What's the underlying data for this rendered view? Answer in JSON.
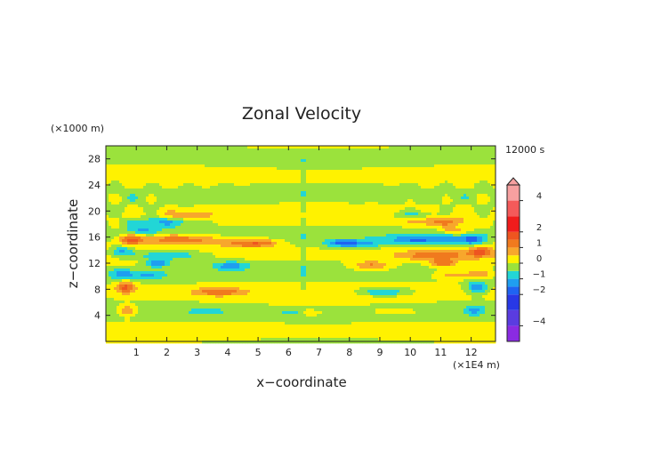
{
  "chart_data": {
    "type": "heatmap",
    "title": "Zonal Velocity",
    "xlabel": "x−coordinate",
    "ylabel": "z−coordinate",
    "x_units": "(×1E4 m)",
    "y_units": "(×1000 m)",
    "time_label": "12000 s",
    "xlim": [
      0,
      12.8
    ],
    "ylim": [
      0,
      30
    ],
    "x_ticks": [
      1,
      2,
      3,
      4,
      5,
      6,
      7,
      8,
      9,
      10,
      11,
      12
    ],
    "y_ticks": [
      4,
      8,
      12,
      16,
      20,
      24,
      28
    ],
    "colorbar": {
      "range": [
        -5,
        5
      ],
      "tick_values": [
        4,
        2,
        1,
        0,
        -1,
        -2,
        -4
      ],
      "tick_labels": [
        "4",
        "2",
        "1",
        "0",
        "−1",
        "−2",
        "−4"
      ],
      "colors": [
        {
          "min": -5.0,
          "max": -4.0,
          "color": "#8a2be2"
        },
        {
          "min": -4.0,
          "max": -3.0,
          "color": "#5a3ce0"
        },
        {
          "min": -3.0,
          "max": -2.0,
          "color": "#2838e6"
        },
        {
          "min": -2.0,
          "max": -1.5,
          "color": "#1f63f2"
        },
        {
          "min": -1.5,
          "max": -1.0,
          "color": "#1f9ef0"
        },
        {
          "min": -1.0,
          "max": -0.5,
          "color": "#22d6d6"
        },
        {
          "min": -0.5,
          "max": 0.0,
          "color": "#9be23c"
        },
        {
          "min": 0.0,
          "max": 0.5,
          "color": "#fff200"
        },
        {
          "min": 0.5,
          "max": 1.0,
          "color": "#f7a72c"
        },
        {
          "min": 1.0,
          "max": 1.5,
          "color": "#f07a1e"
        },
        {
          "min": 1.5,
          "max": 2.0,
          "color": "#ee5520"
        },
        {
          "min": 2.0,
          "max": 3.0,
          "color": "#f01c1c"
        },
        {
          "min": 3.0,
          "max": 4.0,
          "color": "#f45a5a"
        },
        {
          "min": 4.0,
          "max": 5.0,
          "color": "#f7a0a0"
        }
      ]
    },
    "features": [
      {
        "x": 0.65,
        "z": 8.3,
        "sx": 0.32,
        "sz": 0.9,
        "amp": 1.6
      },
      {
        "x": 0.7,
        "z": 4.8,
        "sx": 0.3,
        "sz": 0.8,
        "amp": 1.2
      },
      {
        "x": 0.5,
        "z": 10.3,
        "sx": 0.4,
        "sz": 0.8,
        "amp": -1.0
      },
      {
        "x": 0.5,
        "z": 13.8,
        "sx": 0.4,
        "sz": 0.8,
        "amp": -1.3
      },
      {
        "x": 0.8,
        "z": 15.6,
        "sx": 0.4,
        "sz": 0.8,
        "amp": 1.4
      },
      {
        "x": 1.3,
        "z": 17.0,
        "sx": 0.5,
        "sz": 0.6,
        "amp": -0.9
      },
      {
        "x": 1.8,
        "z": 18.3,
        "sx": 1.0,
        "sz": 0.7,
        "amp": -1.1
      },
      {
        "x": 2.7,
        "z": 19.4,
        "sx": 0.7,
        "sz": 0.6,
        "amp": 0.9
      },
      {
        "x": 2.4,
        "z": 15.6,
        "sx": 1.3,
        "sz": 0.8,
        "amp": 1.5
      },
      {
        "x": 2.0,
        "z": 13.2,
        "sx": 1.2,
        "sz": 0.7,
        "amp": -1.2
      },
      {
        "x": 1.7,
        "z": 12.0,
        "sx": 0.4,
        "sz": 0.6,
        "amp": -1.4
      },
      {
        "x": 1.4,
        "z": 10.2,
        "sx": 0.6,
        "sz": 0.7,
        "amp": -0.9
      },
      {
        "x": 4.1,
        "z": 11.6,
        "sx": 0.6,
        "sz": 0.7,
        "amp": -1.2
      },
      {
        "x": 3.7,
        "z": 7.6,
        "sx": 0.8,
        "sz": 0.6,
        "amp": 1.3
      },
      {
        "x": 4.5,
        "z": 15.0,
        "sx": 0.7,
        "sz": 0.6,
        "amp": 1.2
      },
      {
        "x": 5.2,
        "z": 15.1,
        "sx": 0.5,
        "sz": 0.6,
        "amp": 1.0
      },
      {
        "x": 3.3,
        "z": 4.6,
        "sx": 0.6,
        "sz": 0.4,
        "amp": -0.8
      },
      {
        "x": 6.2,
        "z": 4.4,
        "sx": 0.4,
        "sz": 0.4,
        "amp": -0.8
      },
      {
        "x": 12.2,
        "z": 8.3,
        "sx": 0.32,
        "sz": 0.9,
        "amp": -1.5
      },
      {
        "x": 12.1,
        "z": 4.8,
        "sx": 0.3,
        "sz": 0.8,
        "amp": -1.1
      },
      {
        "x": 12.3,
        "z": 10.3,
        "sx": 0.4,
        "sz": 0.8,
        "amp": 1.0
      },
      {
        "x": 12.3,
        "z": 13.8,
        "sx": 0.4,
        "sz": 0.8,
        "amp": 1.3
      },
      {
        "x": 12.0,
        "z": 15.6,
        "sx": 0.4,
        "sz": 0.8,
        "amp": -1.4
      },
      {
        "x": 11.5,
        "z": 17.0,
        "sx": 0.5,
        "sz": 0.6,
        "amp": 0.9
      },
      {
        "x": 11.0,
        "z": 18.3,
        "sx": 1.0,
        "sz": 0.7,
        "amp": 1.1
      },
      {
        "x": 10.1,
        "z": 19.4,
        "sx": 0.7,
        "sz": 0.6,
        "amp": -0.9
      },
      {
        "x": 10.4,
        "z": 15.6,
        "sx": 1.3,
        "sz": 0.8,
        "amp": -1.5
      },
      {
        "x": 10.8,
        "z": 13.2,
        "sx": 1.2,
        "sz": 0.7,
        "amp": 1.2
      },
      {
        "x": 11.1,
        "z": 12.0,
        "sx": 0.4,
        "sz": 0.6,
        "amp": 1.4
      },
      {
        "x": 11.4,
        "z": 10.2,
        "sx": 0.6,
        "sz": 0.7,
        "amp": 0.9
      },
      {
        "x": 8.7,
        "z": 11.6,
        "sx": 0.6,
        "sz": 0.7,
        "amp": 1.2
      },
      {
        "x": 9.1,
        "z": 7.6,
        "sx": 0.8,
        "sz": 0.6,
        "amp": -1.3
      },
      {
        "x": 8.3,
        "z": 15.0,
        "sx": 0.7,
        "sz": 0.6,
        "amp": -1.2
      },
      {
        "x": 7.6,
        "z": 15.1,
        "sx": 0.5,
        "sz": 0.6,
        "amp": -1.0
      },
      {
        "x": 9.5,
        "z": 4.6,
        "sx": 0.6,
        "sz": 0.4,
        "amp": 0.8
      },
      {
        "x": 6.6,
        "z": 4.4,
        "sx": 0.4,
        "sz": 0.4,
        "amp": 0.8
      }
    ]
  }
}
